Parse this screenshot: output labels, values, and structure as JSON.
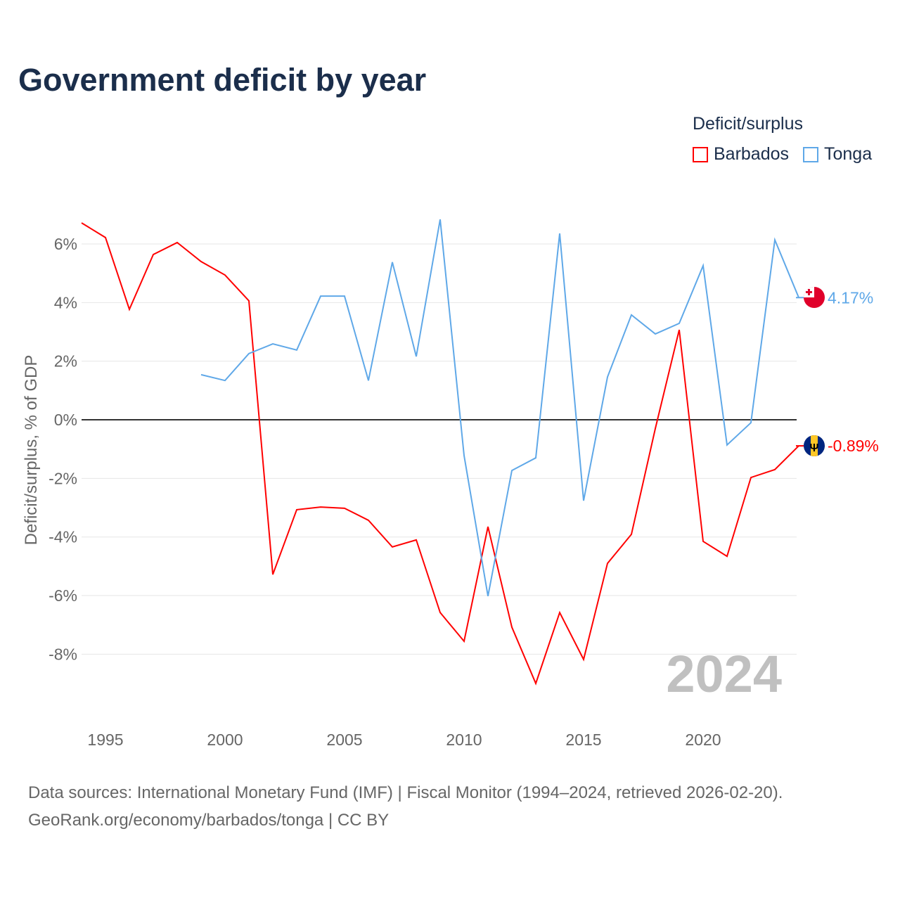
{
  "chart_data": {
    "type": "line",
    "title": "Government deficit by year",
    "ylabel": "Deficit/surplus, % of GDP",
    "xlabel": "",
    "xlim": [
      1994,
      2024
    ],
    "ylim": [
      -10,
      7.5
    ],
    "x_ticks": [
      1995,
      2000,
      2005,
      2010,
      2015,
      2020
    ],
    "y_ticks": [
      6,
      4,
      2,
      0,
      -2,
      -4,
      -6,
      -8
    ],
    "y_tick_labels": [
      "6%",
      "4%",
      "2%",
      "0%",
      "-2%",
      "-4%",
      "-6%",
      "-8%"
    ],
    "legend_title": "Deficit/surplus",
    "legend_position": "top-right",
    "watermark_year": "2024",
    "series": [
      {
        "name": "Barbados",
        "color": "#ff0000",
        "end_label": "-0.89%",
        "x": [
          1994,
          1995,
          1996,
          1997,
          1998,
          1999,
          2000,
          2001,
          2002,
          2003,
          2004,
          2005,
          2006,
          2007,
          2008,
          2009,
          2010,
          2011,
          2012,
          2013,
          2014,
          2015,
          2016,
          2017,
          2018,
          2019,
          2020,
          2021,
          2022,
          2023,
          2024
        ],
        "values": [
          6.72,
          6.22,
          3.77,
          5.64,
          6.05,
          5.4,
          4.94,
          4.06,
          -5.28,
          -3.07,
          -2.98,
          -3.02,
          -3.43,
          -4.34,
          -4.1,
          -6.58,
          -7.56,
          -3.65,
          -7.08,
          -9.0,
          -6.58,
          -8.18,
          -4.9,
          -3.91,
          -0.3,
          3.07,
          -4.15,
          -4.66,
          -1.97,
          -1.7,
          -0.89
        ]
      },
      {
        "name": "Tonga",
        "color": "#5fa8e8",
        "end_label": "4.17%",
        "x": [
          1999,
          2000,
          2001,
          2002,
          2003,
          2004,
          2005,
          2006,
          2007,
          2008,
          2009,
          2010,
          2011,
          2012,
          2013,
          2014,
          2015,
          2016,
          2017,
          2018,
          2019,
          2020,
          2021,
          2022,
          2023,
          2024
        ],
        "values": [
          1.54,
          1.34,
          2.26,
          2.59,
          2.38,
          4.22,
          4.22,
          1.34,
          5.38,
          2.16,
          6.84,
          -1.22,
          -6.02,
          -1.73,
          -1.3,
          6.36,
          -2.76,
          1.46,
          3.58,
          2.93,
          3.29,
          5.26,
          -0.86,
          -0.1,
          6.14,
          4.17
        ]
      }
    ]
  },
  "footer": {
    "line1": "Data sources: International Monetary Fund (IMF) | Fiscal Monitor (1994–2024, retrieved 2026-02-20).",
    "line2": "GeoRank.org/economy/barbados/tonga | CC BY"
  }
}
